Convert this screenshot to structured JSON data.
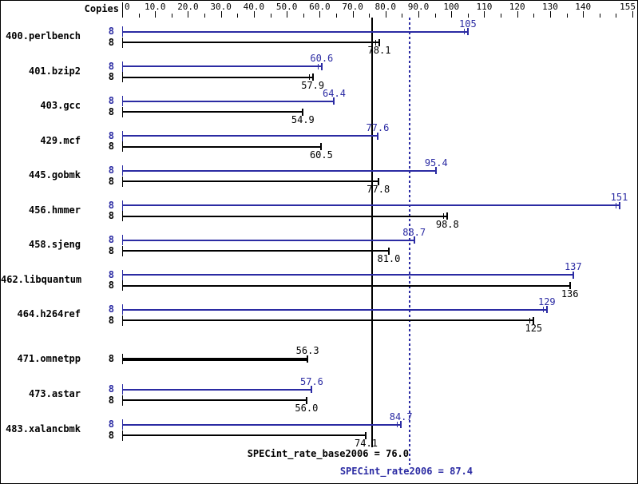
{
  "header": {
    "copies_label": "Copies"
  },
  "colors": {
    "peak_blue": "#2b2ba3",
    "base_black": "#000000",
    "background": "#ffffff",
    "border": "#000000"
  },
  "chart_data": {
    "type": "bar",
    "orientation": "horizontal",
    "title": "",
    "xlabel": "",
    "ylabel": "Copies",
    "xlim": [
      0,
      155
    ],
    "grid": false,
    "legend_position": "none",
    "x_axis": {
      "major_ticks": [
        0,
        10,
        20,
        30,
        40,
        50,
        60,
        70,
        80,
        90,
        100,
        110,
        120,
        130,
        140,
        155
      ],
      "major_tick_labels": [
        "0",
        "10.0",
        "20.0",
        "30.0",
        "40.0",
        "50.0",
        "60.0",
        "70.0",
        "80.0",
        "90.0",
        "100",
        "110",
        "120",
        "130",
        "140",
        "155"
      ],
      "minor_ticks": [
        5,
        15,
        25,
        35,
        45,
        55,
        65,
        75,
        85,
        95,
        105,
        115,
        125,
        135,
        145,
        150
      ]
    },
    "categories": [
      "400.perlbench",
      "401.bzip2",
      "403.gcc",
      "429.mcf",
      "445.gobmk",
      "456.hmmer",
      "458.sjeng",
      "462.libquantum",
      "464.h264ref",
      "471.omnetpp",
      "473.astar",
      "483.xalancbmk"
    ],
    "copies": [
      8,
      8,
      8,
      8,
      8,
      8,
      8,
      8,
      8,
      8,
      8,
      8
    ],
    "series": [
      {
        "name": "SPECint_rate2006 (peak)",
        "color": "#2b2ba3",
        "values": [
          105,
          60.6,
          64.4,
          77.6,
          95.4,
          151,
          88.7,
          137,
          129,
          null,
          57.6,
          84.7
        ],
        "labels": [
          "105",
          "60.6",
          "64.4",
          "77.6",
          "95.4",
          "151",
          "88.7",
          "137",
          "129",
          "",
          "57.6",
          "84.7"
        ],
        "run_spread_marks": [
          true,
          true,
          false,
          false,
          false,
          true,
          false,
          false,
          true,
          false,
          false,
          true
        ]
      },
      {
        "name": "SPECint_rate_base2006 (base)",
        "color": "#000000",
        "values": [
          78.1,
          57.9,
          54.9,
          60.5,
          77.8,
          98.8,
          81.0,
          136,
          125,
          56.3,
          56.0,
          74.1
        ],
        "labels": [
          "78.1",
          "57.9",
          "54.9",
          "60.5",
          "77.8",
          "98.8",
          "81.0",
          "136",
          "125",
          "56.3",
          "56.0",
          "74.1"
        ],
        "run_spread_marks": [
          true,
          true,
          false,
          false,
          false,
          true,
          false,
          false,
          true,
          false,
          false,
          false
        ]
      }
    ],
    "single_bar_rows": [
      9
    ],
    "reference_lines": [
      {
        "name": "SPECint_rate_base2006",
        "value": 76.0,
        "style": "solid",
        "color": "#000000",
        "display": "SPECint_rate_base2006 = 76.0"
      },
      {
        "name": "SPECint_rate2006",
        "value": 87.4,
        "style": "dotted",
        "color": "#2b2ba3",
        "display": "SPECint_rate2006 = 87.4"
      }
    ]
  }
}
